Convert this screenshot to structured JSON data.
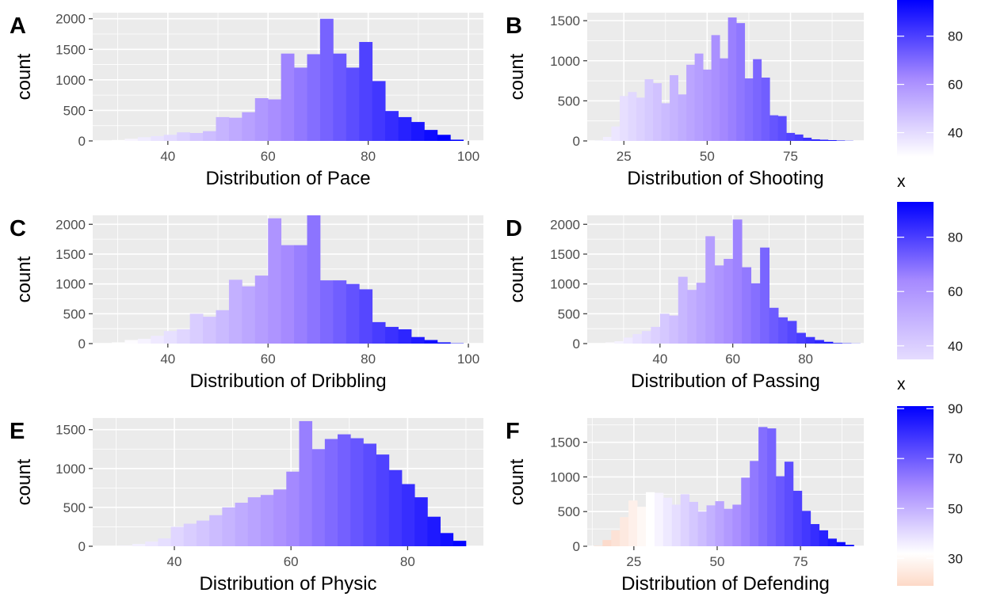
{
  "chart_data": [
    {
      "tag": "A",
      "type": "bar",
      "xlabel": "Distribution of Pace",
      "ylabel": "count",
      "xlim": [
        25,
        103
      ],
      "ylim": [
        0,
        2100
      ],
      "xticks": [
        40,
        60,
        80,
        100
      ],
      "yticks": [
        0,
        500,
        1000,
        1500,
        2000
      ],
      "bin_width": 2.6,
      "x": [
        27.5,
        30.1,
        32.7,
        35.3,
        37.9,
        40.5,
        43.1,
        45.7,
        48.3,
        50.9,
        53.5,
        56.1,
        58.7,
        61.3,
        63.9,
        66.5,
        69.1,
        71.7,
        74.3,
        76.9,
        79.5,
        82.1,
        84.7,
        87.3,
        89.9,
        92.5,
        95.1,
        97.7
      ],
      "values": [
        5,
        15,
        35,
        60,
        80,
        100,
        140,
        130,
        160,
        390,
        380,
        470,
        700,
        680,
        1430,
        1200,
        1420,
        2000,
        1430,
        1200,
        1620,
        980,
        490,
        390,
        310,
        180,
        100,
        20
      ]
    },
    {
      "tag": "B",
      "type": "bar",
      "xlabel": "Distribution of Shooting",
      "ylabel": "count",
      "xlim": [
        14,
        97
      ],
      "ylim": [
        0,
        1600
      ],
      "xticks": [
        25,
        50,
        75
      ],
      "yticks": [
        0,
        500,
        1000,
        1500
      ],
      "bin_width": 2.5,
      "x": [
        17.5,
        20,
        22.5,
        25,
        27.5,
        30,
        32.5,
        35,
        37.5,
        40,
        42.5,
        45,
        47.5,
        50,
        52.5,
        55,
        57.5,
        60,
        62.5,
        65,
        67.5,
        70,
        72.5,
        75,
        77.5,
        80,
        82.5,
        85,
        87.5,
        90,
        92.5
      ],
      "values": [
        5,
        50,
        180,
        560,
        610,
        540,
        770,
        720,
        470,
        820,
        580,
        950,
        1090,
        890,
        1320,
        1030,
        1540,
        1470,
        780,
        1020,
        790,
        320,
        310,
        100,
        80,
        40,
        20,
        15,
        10,
        5,
        2
      ]
    },
    {
      "tag": "C",
      "type": "bar",
      "xlabel": "Distribution of Dribbling",
      "ylabel": "count",
      "xlim": [
        25,
        103
      ],
      "ylim": [
        0,
        2150
      ],
      "xticks": [
        40,
        60,
        80,
        100
      ],
      "yticks": [
        0,
        500,
        1000,
        1500,
        2000
      ],
      "bin_width": 2.6,
      "x": [
        27.5,
        30.1,
        32.7,
        35.3,
        37.9,
        40.5,
        43.1,
        45.7,
        48.3,
        50.9,
        53.5,
        56.1,
        58.7,
        61.3,
        63.9,
        66.5,
        69.1,
        71.7,
        74.3,
        76.9,
        79.5,
        82.1,
        84.7,
        87.3,
        89.9,
        92.5,
        95.1,
        97.7
      ],
      "values": [
        5,
        20,
        60,
        80,
        130,
        210,
        240,
        500,
        450,
        560,
        1070,
        960,
        1140,
        2100,
        1650,
        1650,
        2150,
        1060,
        1060,
        1000,
        910,
        360,
        280,
        240,
        110,
        60,
        20,
        5
      ]
    },
    {
      "tag": "D",
      "type": "bar",
      "xlabel": "Distribution of Passing",
      "ylabel": "count",
      "xlim": [
        20,
        96
      ],
      "ylim": [
        0,
        2150
      ],
      "xticks": [
        40,
        60,
        80
      ],
      "yticks": [
        0,
        500,
        1000,
        1500,
        2000
      ],
      "bin_width": 2.5,
      "x": [
        23.75,
        26.25,
        28.75,
        31.25,
        33.75,
        36.25,
        38.75,
        41.25,
        43.75,
        46.25,
        48.75,
        51.25,
        53.75,
        56.25,
        58.75,
        61.25,
        63.75,
        66.25,
        68.75,
        71.25,
        73.75,
        76.25,
        78.75,
        81.25,
        83.75,
        86.25,
        88.75,
        91.25,
        93.75
      ],
      "values": [
        5,
        20,
        40,
        100,
        160,
        210,
        280,
        500,
        470,
        1120,
        900,
        1020,
        1800,
        1310,
        1420,
        2080,
        1280,
        1010,
        1610,
        600,
        440,
        380,
        180,
        110,
        60,
        30,
        10,
        5,
        2
      ]
    },
    {
      "tag": "E",
      "type": "bar",
      "xlabel": "Distribution of Physic",
      "ylabel": "count",
      "xlim": [
        26,
        93
      ],
      "ylim": [
        0,
        1650
      ],
      "xticks": [
        40,
        60,
        80
      ],
      "yticks": [
        0,
        500,
        1000,
        1500
      ],
      "bin_width": 2.2,
      "x": [
        29.5,
        31.7,
        33.9,
        36.1,
        38.3,
        40.5,
        42.7,
        44.9,
        47.1,
        49.3,
        51.5,
        53.7,
        55.9,
        58.1,
        60.3,
        62.5,
        64.7,
        66.9,
        69.1,
        71.3,
        73.5,
        75.7,
        77.9,
        80.1,
        82.3,
        84.5,
        86.7,
        88.9
      ],
      "values": [
        5,
        10,
        30,
        60,
        100,
        250,
        290,
        330,
        400,
        500,
        560,
        630,
        660,
        730,
        960,
        1610,
        1250,
        1380,
        1440,
        1390,
        1320,
        1180,
        980,
        800,
        630,
        380,
        170,
        70
      ]
    },
    {
      "tag": "F",
      "type": "bar",
      "xlabel": "Distribution of Defending",
      "ylabel": "count",
      "xlim": [
        11,
        94
      ],
      "ylim": [
        0,
        1850
      ],
      "xticks": [
        25,
        50,
        75
      ],
      "yticks": [
        0,
        500,
        1000,
        1500
      ],
      "bin_width": 2.6,
      "x": [
        14.3,
        16.9,
        19.5,
        22.1,
        24.7,
        27.3,
        29.9,
        32.5,
        35.1,
        37.7,
        40.3,
        42.9,
        45.5,
        48.1,
        50.7,
        53.3,
        55.9,
        58.5,
        61.1,
        63.7,
        66.3,
        68.9,
        71.5,
        74.1,
        76.7,
        79.3,
        81.9,
        84.5,
        87.1,
        89.7
      ],
      "values": [
        5,
        90,
        230,
        420,
        660,
        570,
        780,
        770,
        700,
        600,
        750,
        640,
        500,
        590,
        650,
        540,
        600,
        990,
        1230,
        1720,
        1700,
        1010,
        1220,
        800,
        510,
        320,
        230,
        110,
        60,
        20
      ]
    }
  ],
  "legends": [
    {
      "title": "",
      "range": [
        30,
        95
      ],
      "ticks": [
        40,
        60,
        80
      ],
      "stops": [
        "#ffffff",
        "#a68aff",
        "#0000ff"
      ]
    },
    {
      "title": "x",
      "range": [
        35,
        93
      ],
      "ticks": [
        40,
        60,
        80
      ],
      "stops": [
        "#e5dcff",
        "#a68aff",
        "#0000ff"
      ]
    },
    {
      "title": "x",
      "range": [
        19,
        91
      ],
      "ticks": [
        30,
        50,
        70,
        90
      ],
      "stops": [
        "#fdd9c7",
        "#ffffff",
        "#0000ff"
      ],
      "mid": 32
    }
  ],
  "colors": {
    "panel_bg": "#ebebeb",
    "grid_major": "#ffffff",
    "low_warm": "#fbd3c1",
    "white": "#ffffff",
    "mid_violet": "#a68aff",
    "high_blue": "#0000ff"
  }
}
